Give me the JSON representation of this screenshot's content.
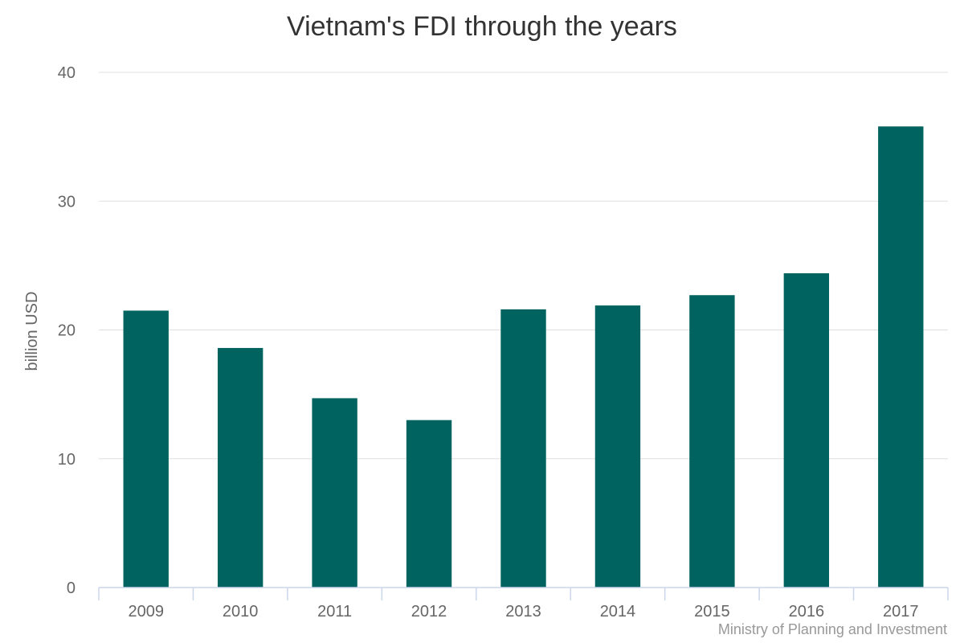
{
  "chart_data": {
    "type": "bar",
    "title": "Vietnam's FDI through the years",
    "xlabel": "",
    "ylabel": "billion USD",
    "categories": [
      "2009",
      "2010",
      "2011",
      "2012",
      "2013",
      "2014",
      "2015",
      "2016",
      "2017"
    ],
    "values": [
      21.5,
      18.6,
      14.7,
      13.0,
      21.6,
      21.9,
      22.7,
      24.4,
      35.8
    ],
    "ylim": [
      0,
      40
    ],
    "yticks": [
      0,
      10,
      20,
      30,
      40
    ],
    "grid": true,
    "legend": "none",
    "bar_color": "#00635f",
    "credit": "Ministry of Planning and Investment"
  }
}
